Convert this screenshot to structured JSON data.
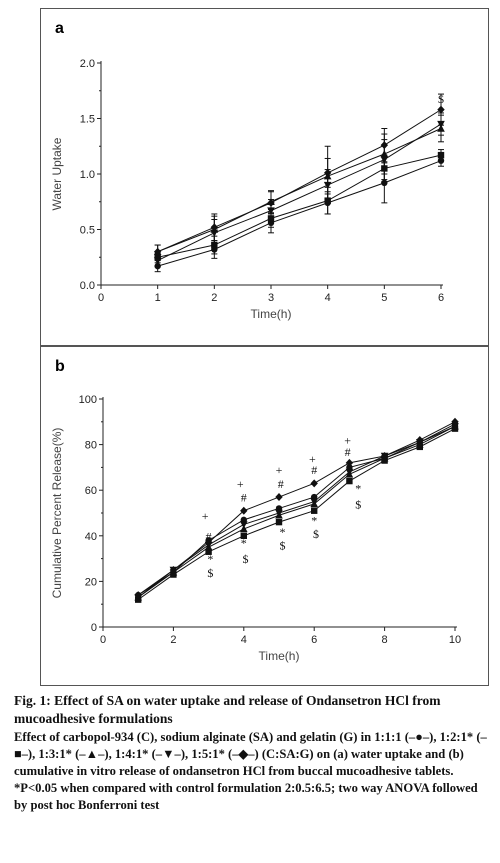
{
  "chart_data": [
    {
      "panel": "a",
      "type": "line",
      "xlabel": "Time(h)",
      "ylabel": "Water Uptake",
      "xlim": [
        0,
        6
      ],
      "ylim": [
        0,
        2.0
      ],
      "x_ticks": [
        "0",
        "1",
        "2",
        "3",
        "4",
        "5",
        "6"
      ],
      "y_ticks": [
        "0.0",
        "0.5",
        "1.0",
        "1.5",
        "2.0"
      ],
      "x": [
        1,
        2,
        3,
        4,
        5,
        6
      ],
      "series": [
        {
          "marker": "circle",
          "values": [
            0.17,
            0.32,
            0.56,
            0.74,
            0.92,
            1.12
          ],
          "errors": [
            0.05,
            0.08,
            0.09,
            0.1,
            0.18,
            0.05
          ]
        },
        {
          "marker": "square",
          "values": [
            0.25,
            0.36,
            0.6,
            0.76,
            1.05,
            1.17
          ],
          "errors": [
            0.05,
            0.08,
            0.08,
            0.12,
            0.12,
            0.05
          ]
        },
        {
          "marker": "triangle-up",
          "values": [
            0.3,
            0.5,
            0.75,
            0.98,
            1.18,
            1.41
          ],
          "errors": [
            0.06,
            0.12,
            0.1,
            0.16,
            0.18,
            0.12
          ]
        },
        {
          "marker": "triangle-down",
          "values": [
            0.22,
            0.47,
            0.67,
            0.9,
            1.13,
            1.45
          ],
          "errors": [
            0.05,
            0.12,
            0.1,
            0.14,
            0.18,
            0.1
          ]
        },
        {
          "marker": "diamond",
          "values": [
            0.3,
            0.52,
            0.74,
            1.01,
            1.26,
            1.58
          ],
          "errors": [
            0.06,
            0.12,
            0.1,
            0.24,
            0.15,
            0.14
          ]
        }
      ],
      "annotations": [
        {
          "x": 6,
          "y": 1.64,
          "text": "$"
        }
      ]
    },
    {
      "panel": "b",
      "type": "line",
      "xlabel": "Time(h)",
      "ylabel": "Cumulative Percent Release(%)",
      "xlim": [
        0,
        10
      ],
      "ylim": [
        0,
        100
      ],
      "x_ticks": [
        "0",
        "2",
        "4",
        "6",
        "8",
        "10"
      ],
      "y_ticks": [
        "0",
        "20",
        "40",
        "60",
        "80",
        "100"
      ],
      "x": [
        1,
        2,
        3,
        4,
        5,
        6,
        7,
        8,
        9,
        10
      ],
      "series": [
        {
          "marker": "circle",
          "values": [
            14,
            24,
            38,
            47,
            52,
            57,
            70,
            74,
            81,
            89
          ]
        },
        {
          "marker": "square",
          "values": [
            12,
            23,
            33,
            40,
            46,
            51,
            64,
            73,
            79,
            87
          ]
        },
        {
          "marker": "triangle-up",
          "values": [
            13,
            24,
            35,
            43,
            49,
            54,
            67,
            74,
            80,
            88
          ]
        },
        {
          "marker": "triangle-down",
          "values": [
            13,
            25,
            36,
            45,
            50,
            55,
            68,
            75,
            81,
            88
          ]
        },
        {
          "marker": "diamond",
          "values": [
            14,
            25,
            37,
            51,
            57,
            63,
            72,
            75,
            82,
            90
          ]
        }
      ],
      "annotations": [
        {
          "x": 2.9,
          "y": 47,
          "text": "+"
        },
        {
          "x": 3.0,
          "y": 38,
          "text": "#"
        },
        {
          "x": 3.05,
          "y": 28,
          "text": "*"
        },
        {
          "x": 3.05,
          "y": 22,
          "text": "$"
        },
        {
          "x": 3.9,
          "y": 61,
          "text": "+"
        },
        {
          "x": 4.0,
          "y": 55,
          "text": "#"
        },
        {
          "x": 4.0,
          "y": 35,
          "text": "*"
        },
        {
          "x": 4.05,
          "y": 28,
          "text": "$"
        },
        {
          "x": 5.0,
          "y": 67,
          "text": "+"
        },
        {
          "x": 5.05,
          "y": 61,
          "text": "#"
        },
        {
          "x": 5.1,
          "y": 40,
          "text": "*"
        },
        {
          "x": 5.1,
          "y": 34,
          "text": "$"
        },
        {
          "x": 5.95,
          "y": 72,
          "text": "+"
        },
        {
          "x": 6.0,
          "y": 67,
          "text": "#"
        },
        {
          "x": 6.0,
          "y": 45,
          "text": "*"
        },
        {
          "x": 6.05,
          "y": 39,
          "text": "$"
        },
        {
          "x": 6.95,
          "y": 80,
          "text": "+"
        },
        {
          "x": 6.95,
          "y": 75,
          "text": "#"
        },
        {
          "x": 7.25,
          "y": 59,
          "text": "*"
        },
        {
          "x": 7.25,
          "y": 52,
          "text": "$"
        }
      ]
    }
  ],
  "panel_labels": {
    "a": "a",
    "b": "b"
  },
  "caption": {
    "title": "Fig. 1: Effect of SA on water uptake and release of Ondansetron HCl from mucoadhesive formulations",
    "body": "Effect of carbopol-934 (C), sodium alginate (SA) and gelatin (G) in 1:1:1 (–●–), 1:2:1* (–■–), 1:3:1* (–▲–), 1:4:1* (–▼–), 1:5:1* (–◆–) (C:SA:G) on (a) water uptake and (b) cumulative in vitro release of ondansetron HCl from buccal mucoadhesive tablets. *P<0.05 when compared with control formulation 2:0.5:6.5; two way ANOVA followed by post hoc Bonferroni test"
  }
}
